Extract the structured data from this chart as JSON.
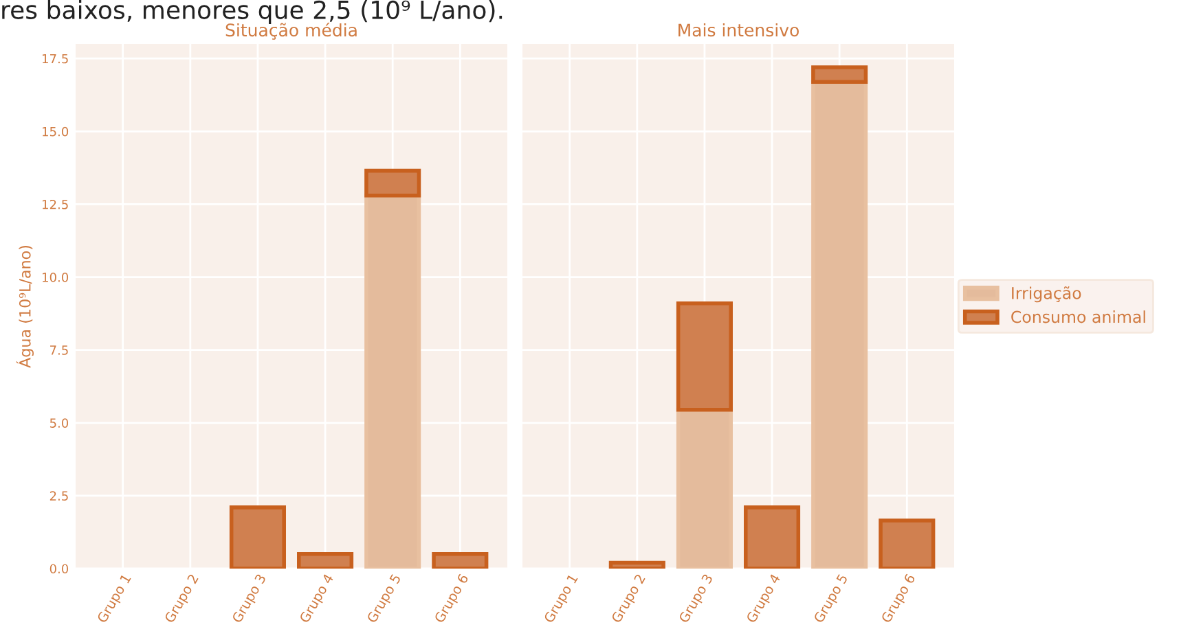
{
  "chart_data": [
    {
      "type": "bar",
      "title": "Situação média",
      "ylabel": "Água (10⁹L/ano)",
      "annotations": [
        "res baixos, menores que 2,5 (10⁹ L/ano)."
      ],
      "categories": [
        "Grupo 1",
        "Grupo 2",
        "Grupo 3",
        "Grupo 4",
        "Grupo 5",
        "Grupo 6"
      ],
      "stacked": true,
      "series": [
        {
          "color": "#e4bb9c",
          "values": [
            null,
            null,
            null,
            null,
            12.8,
            null
          ]
        },
        {
          "color": "#d08050",
          "values": [
            null,
            null,
            2.1,
            0.5,
            0.85,
            0.5
          ]
        }
      ],
      "ylim": [
        0,
        18
      ],
      "yticks": [
        {
          "value": 0,
          "label": "0.0"
        },
        2.5,
        {
          "value": 5,
          "label": "5.0"
        },
        7.5,
        {
          "value": 10,
          "label": "10.0"
        },
        12.5,
        {
          "value": 15,
          "label": "15.0"
        },
        17.5
      ],
      "grid": true
    },
    {
      "type": "bar",
      "title": "Mais intensivo",
      "categories": [
        "Grupo 1",
        "Grupo 2",
        "Grupo 3",
        "Grupo 4",
        "Grupo 5",
        "Grupo 6"
      ],
      "stacked": true,
      "series": [
        {
          "name": "Irrigação",
          "color": "#e4bb9c",
          "values": [
            null,
            null,
            5.45,
            null,
            16.7,
            null
          ]
        },
        {
          "name": "Consumo animal",
          "color": "#d08050",
          "values": [
            null,
            0.2,
            3.65,
            2.1,
            0.5,
            1.65
          ]
        }
      ],
      "ylim": [
        0,
        18
      ],
      "yticks": [
        0,
        2.5,
        5,
        7.5,
        10,
        12.5,
        15,
        17.5
      ],
      "tick_labels": "x",
      "grid": true,
      "legend": "right"
    }
  ]
}
